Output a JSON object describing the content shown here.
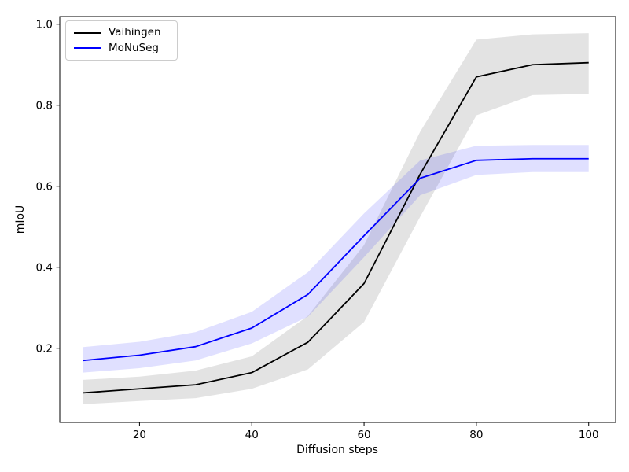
{
  "figure": {
    "background": "#ffffff",
    "axes_edge_color": "#000000"
  },
  "chart_data": {
    "type": "line",
    "title": "",
    "xlabel": "Diffusion steps",
    "ylabel": "mIoU",
    "x": [
      10,
      20,
      30,
      40,
      50,
      60,
      70,
      80,
      90,
      100
    ],
    "xticks": [
      20,
      40,
      60,
      80,
      100
    ],
    "yticks": [
      0.2,
      0.4,
      0.6,
      0.8,
      1.0
    ],
    "ytick_labels": [
      "0.2",
      "0.4",
      "0.6",
      "0.8",
      "1.0"
    ],
    "xlim": [
      5.8,
      104.8
    ],
    "ylim": [
      0.017,
      1.019
    ],
    "grid": false,
    "legend_position": "upper left",
    "series": [
      {
        "name": "Vaihingen",
        "color": "#000000",
        "band_color": "rgba(128,128,128,0.22)",
        "values": [
          0.09,
          0.1,
          0.11,
          0.14,
          0.215,
          0.36,
          0.63,
          0.87,
          0.9,
          0.905
        ],
        "band_lower": [
          0.062,
          0.07,
          0.077,
          0.1,
          0.148,
          0.265,
          0.525,
          0.775,
          0.825,
          0.828
        ],
        "band_upper": [
          0.122,
          0.13,
          0.145,
          0.18,
          0.28,
          0.455,
          0.735,
          0.962,
          0.975,
          0.978
        ]
      },
      {
        "name": "MoNuSeg",
        "color": "#0000ff",
        "band_color": "rgba(0,0,255,0.12)",
        "values": [
          0.17,
          0.183,
          0.204,
          0.25,
          0.333,
          0.478,
          0.62,
          0.664,
          0.668,
          0.668
        ],
        "band_lower": [
          0.14,
          0.151,
          0.17,
          0.212,
          0.278,
          0.425,
          0.578,
          0.628,
          0.635,
          0.635
        ],
        "band_upper": [
          0.203,
          0.216,
          0.24,
          0.29,
          0.388,
          0.533,
          0.664,
          0.7,
          0.702,
          0.702
        ]
      }
    ]
  }
}
